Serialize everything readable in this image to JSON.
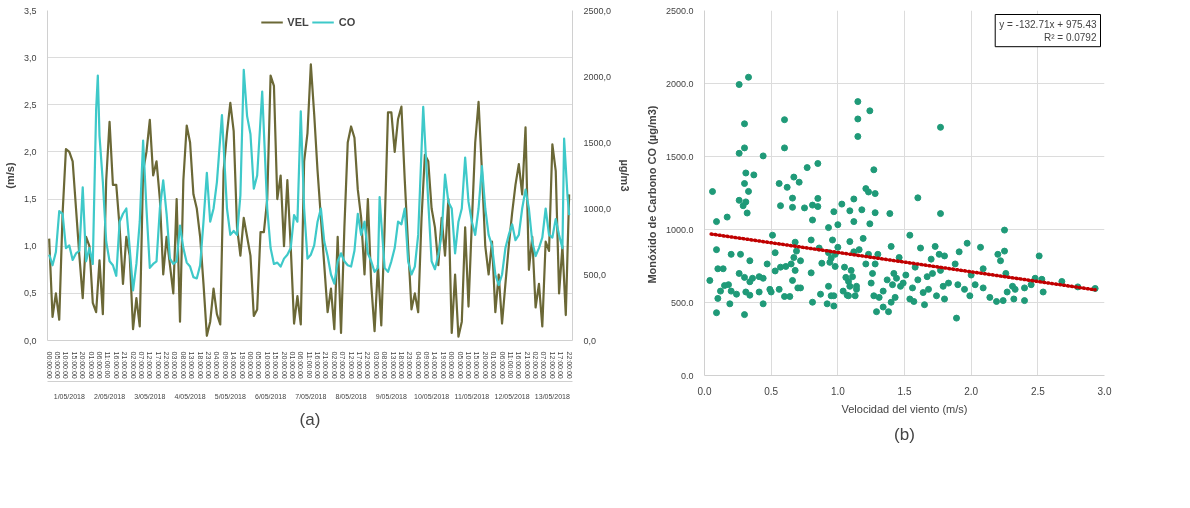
{
  "chart_data": [
    {
      "type": "line",
      "title": "(a)",
      "ylabel": "(m/s)",
      "y2label": "µg/m3",
      "legend": "top",
      "grid": "y",
      "xlim": [
        "2018-04-30T23:00",
        "2018-05-14T00:00"
      ],
      "xticks": [
        {
          "value": "2018-05-01T00:00",
          "label": "00:00:00"
        },
        {
          "value": "2018-05-01T05:00",
          "label": "05:00:00"
        },
        {
          "value": "2018-05-01T10:00",
          "label": "10:00:00"
        },
        {
          "value": "2018-05-01T15:00",
          "label": "15:00:00"
        },
        {
          "value": "2018-05-01T20:00",
          "label": "20:00:00"
        },
        {
          "value": "2018-05-02T01:00",
          "label": "01:00:00"
        },
        {
          "value": "2018-05-02T06:00",
          "label": "06:00:00"
        },
        {
          "value": "2018-05-02T11:00",
          "label": "11:00:00"
        },
        {
          "value": "2018-05-02T16:00",
          "label": "16:00:00"
        },
        {
          "value": "2018-05-02T21:00",
          "label": "21:00:00"
        },
        {
          "value": "2018-05-03T02:00",
          "label": "02:00:00"
        },
        {
          "value": "2018-05-03T07:00",
          "label": "07:00:00"
        },
        {
          "value": "2018-05-03T12:00",
          "label": "12:00:00"
        },
        {
          "value": "2018-05-03T17:00",
          "label": "17:00:00"
        },
        {
          "value": "2018-05-03T22:00",
          "label": "22:00:00"
        },
        {
          "value": "2018-05-04T03:00",
          "label": "03:00:00"
        },
        {
          "value": "2018-05-04T08:00",
          "label": "08:00:00"
        },
        {
          "value": "2018-05-04T13:00",
          "label": "13:00:00"
        },
        {
          "value": "2018-05-04T18:00",
          "label": "18:00:00"
        },
        {
          "value": "2018-05-04T23:00",
          "label": "23:00:00"
        },
        {
          "value": "2018-05-05T04:00",
          "label": "04:00:00"
        },
        {
          "value": "2018-05-05T09:00",
          "label": "09:00:00"
        },
        {
          "value": "2018-05-05T14:00",
          "label": "14:00:00"
        },
        {
          "value": "2018-05-05T19:00",
          "label": "19:00:00"
        },
        {
          "value": "2018-05-06T00:00",
          "label": "00:00:00"
        },
        {
          "value": "2018-05-06T05:00",
          "label": "05:00:00"
        },
        {
          "value": "2018-05-06T10:00",
          "label": "10:00:00"
        },
        {
          "value": "2018-05-06T15:00",
          "label": "15:00:00"
        },
        {
          "value": "2018-05-06T20:00",
          "label": "20:00:00"
        },
        {
          "value": "2018-05-07T01:00",
          "label": "01:00:00"
        },
        {
          "value": "2018-05-07T06:00",
          "label": "06:00:00"
        },
        {
          "value": "2018-05-07T11:00",
          "label": "11:00:00"
        },
        {
          "value": "2018-05-07T16:00",
          "label": "16:00:00"
        },
        {
          "value": "2018-05-07T21:00",
          "label": "21:00:00"
        },
        {
          "value": "2018-05-08T02:00",
          "label": "02:00:00"
        },
        {
          "value": "2018-05-08T07:00",
          "label": "07:00:00"
        },
        {
          "value": "2018-05-08T12:00",
          "label": "12:00:00"
        },
        {
          "value": "2018-05-08T17:00",
          "label": "17:00:00"
        },
        {
          "value": "2018-05-08T22:00",
          "label": "22:00:00"
        },
        {
          "value": "2018-05-09T03:00",
          "label": "03:00:00"
        },
        {
          "value": "2018-05-09T08:00",
          "label": "08:00:00"
        },
        {
          "value": "2018-05-09T13:00",
          "label": "13:00:00"
        },
        {
          "value": "2018-05-09T18:00",
          "label": "18:00:00"
        },
        {
          "value": "2018-05-09T23:00",
          "label": "23:00:00"
        },
        {
          "value": "2018-05-10T04:00",
          "label": "04:00:00"
        },
        {
          "value": "2018-05-10T09:00",
          "label": "09:00:00"
        },
        {
          "value": "2018-05-10T14:00",
          "label": "14:00:00"
        },
        {
          "value": "2018-05-10T19:00",
          "label": "19:00:00"
        },
        {
          "value": "2018-05-11T00:00",
          "label": "00:00:00"
        },
        {
          "value": "2018-05-11T05:00",
          "label": "05:00:00"
        },
        {
          "value": "2018-05-11T10:00",
          "label": "10:00:00"
        },
        {
          "value": "2018-05-11T15:00",
          "label": "15:00:00"
        },
        {
          "value": "2018-05-11T20:00",
          "label": "20:00:00"
        },
        {
          "value": "2018-05-12T01:00",
          "label": "01:00:00"
        },
        {
          "value": "2018-05-12T06:00",
          "label": "06:00:00"
        },
        {
          "value": "2018-05-12T11:00",
          "label": "11:00:00"
        },
        {
          "value": "2018-05-12T16:00",
          "label": "16:00:00"
        },
        {
          "value": "2018-05-12T21:00",
          "label": "21:00:00"
        },
        {
          "value": "2018-05-13T02:00",
          "label": "02:00:00"
        },
        {
          "value": "2018-05-13T07:00",
          "label": "07:00:00"
        },
        {
          "value": "2018-05-13T12:00",
          "label": "12:00:00"
        },
        {
          "value": "2018-05-13T17:00",
          "label": "17:00:00"
        },
        {
          "value": "2018-05-13T22:00",
          "label": "22:00:00"
        }
      ],
      "ylim": [
        0,
        3.5
      ],
      "yticks": [
        {
          "value": 0,
          "label": "0,0"
        },
        {
          "value": 0.5,
          "label": "0,5"
        },
        {
          "value": 1,
          "label": "1,0"
        },
        {
          "value": 1.5,
          "label": "1,5"
        },
        {
          "value": 2,
          "label": "2,0"
        },
        {
          "value": 2.5,
          "label": "2,5"
        },
        {
          "value": 3,
          "label": "3,0"
        },
        {
          "value": 3.5,
          "label": "3,5"
        }
      ],
      "y2lim": [
        0,
        2500
      ],
      "y2ticks": [
        {
          "value": 0,
          "label": "0,0"
        },
        {
          "value": 500,
          "label": "500,0"
        },
        {
          "value": 1000,
          "label": "1000,0"
        },
        {
          "value": 1500,
          "label": "1500,0"
        },
        {
          "value": 2000,
          "label": "2000,0"
        },
        {
          "value": 2500,
          "label": "2500,0"
        }
      ],
      "annotations": [
        "1/05/2018",
        "2/05/2018",
        "3/05/2018",
        "4/05/2018",
        "5/05/2018",
        "6/05/2018",
        "7/05/2018",
        "8/05/2018",
        "9/05/2018",
        "10/05/2018",
        "11/05/2018",
        "12/05/2018",
        "13/05/2018"
      ],
      "series": [
        {
          "name": "VEL",
          "color": "#6b6836",
          "x": [
            "2018-05-01T00:00",
            "2018-05-01T02:00",
            "2018-05-01T04:00",
            "2018-05-01T06:00",
            "2018-05-01T08:00",
            "2018-05-01T10:00",
            "2018-05-01T12:00",
            "2018-05-01T14:00",
            "2018-05-01T16:00",
            "2018-05-01T18:00",
            "2018-05-01T20:00",
            "2018-05-01T22:00",
            "2018-05-02T00:00",
            "2018-05-02T02:00",
            "2018-05-02T04:00",
            "2018-05-02T06:00",
            "2018-05-02T08:00",
            "2018-05-02T10:00",
            "2018-05-02T12:00",
            "2018-05-02T14:00",
            "2018-05-02T16:00",
            "2018-05-02T18:00",
            "2018-05-02T20:00",
            "2018-05-02T22:00",
            "2018-05-03T00:00",
            "2018-05-03T02:00",
            "2018-05-03T04:00",
            "2018-05-03T06:00",
            "2018-05-03T08:00",
            "2018-05-03T10:00",
            "2018-05-03T12:00",
            "2018-05-03T14:00",
            "2018-05-03T16:00",
            "2018-05-03T18:00",
            "2018-05-03T20:00",
            "2018-05-03T22:00",
            "2018-05-04T00:00",
            "2018-05-04T02:00",
            "2018-05-04T04:00",
            "2018-05-04T06:00",
            "2018-05-04T08:00",
            "2018-05-04T10:00",
            "2018-05-04T12:00",
            "2018-05-04T14:00",
            "2018-05-04T16:00",
            "2018-05-04T18:00",
            "2018-05-04T20:00",
            "2018-05-04T22:00",
            "2018-05-05T00:00",
            "2018-05-05T02:00",
            "2018-05-05T04:00",
            "2018-05-05T06:00",
            "2018-05-05T08:00",
            "2018-05-05T10:00",
            "2018-05-05T12:00",
            "2018-05-05T14:00",
            "2018-05-05T16:00",
            "2018-05-05T18:00",
            "2018-05-05T20:00",
            "2018-05-05T22:00",
            "2018-05-06T00:00",
            "2018-05-06T02:00",
            "2018-05-06T04:00",
            "2018-05-06T06:00",
            "2018-05-06T08:00",
            "2018-05-06T10:00",
            "2018-05-06T12:00",
            "2018-05-06T14:00",
            "2018-05-06T16:00",
            "2018-05-06T18:00",
            "2018-05-06T20:00",
            "2018-05-06T22:00",
            "2018-05-07T00:00",
            "2018-05-07T02:00",
            "2018-05-07T04:00",
            "2018-05-07T06:00",
            "2018-05-07T08:00",
            "2018-05-07T10:00",
            "2018-05-07T12:00",
            "2018-05-07T14:00",
            "2018-05-07T16:00",
            "2018-05-07T18:00",
            "2018-05-07T20:00",
            "2018-05-07T22:00",
            "2018-05-08T00:00",
            "2018-05-08T02:00",
            "2018-05-08T04:00",
            "2018-05-08T06:00",
            "2018-05-08T08:00",
            "2018-05-08T10:00",
            "2018-05-08T12:00",
            "2018-05-08T14:00",
            "2018-05-08T16:00",
            "2018-05-08T18:00",
            "2018-05-08T20:00",
            "2018-05-08T22:00",
            "2018-05-09T00:00",
            "2018-05-09T02:00",
            "2018-05-09T04:00",
            "2018-05-09T06:00",
            "2018-05-09T08:00",
            "2018-05-09T10:00",
            "2018-05-09T12:00",
            "2018-05-09T14:00",
            "2018-05-09T16:00",
            "2018-05-09T18:00",
            "2018-05-09T20:00",
            "2018-05-09T22:00",
            "2018-05-10T00:00",
            "2018-05-10T02:00",
            "2018-05-10T04:00",
            "2018-05-10T06:00",
            "2018-05-10T08:00",
            "2018-05-10T10:00",
            "2018-05-10T12:00",
            "2018-05-10T14:00",
            "2018-05-10T16:00",
            "2018-05-10T18:00",
            "2018-05-10T20:00",
            "2018-05-10T22:00",
            "2018-05-11T00:00",
            "2018-05-11T02:00",
            "2018-05-11T04:00",
            "2018-05-11T06:00",
            "2018-05-11T08:00",
            "2018-05-11T10:00",
            "2018-05-11T12:00",
            "2018-05-11T14:00",
            "2018-05-11T16:00",
            "2018-05-11T18:00",
            "2018-05-11T20:00",
            "2018-05-11T22:00",
            "2018-05-12T00:00",
            "2018-05-12T02:00",
            "2018-05-12T04:00",
            "2018-05-12T06:00",
            "2018-05-12T08:00",
            "2018-05-12T10:00",
            "2018-05-12T12:00",
            "2018-05-12T14:00",
            "2018-05-12T16:00",
            "2018-05-12T18:00",
            "2018-05-12T20:00",
            "2018-05-12T22:00",
            "2018-05-13T00:00",
            "2018-05-13T02:00",
            "2018-05-13T04:00",
            "2018-05-13T06:00",
            "2018-05-13T08:00",
            "2018-05-13T10:00",
            "2018-05-13T12:00",
            "2018-05-13T14:00",
            "2018-05-13T16:00",
            "2018-05-13T18:00",
            "2018-05-13T20:00",
            "2018-05-13T22:00"
          ],
          "values": [
            1.08,
            0.25,
            0.5,
            0.22,
            1.35,
            2.03,
            2.0,
            1.9,
            1.4,
            0.9,
            0.45,
            1.1,
            1.0,
            0.4,
            0.3,
            0.85,
            0.28,
            1.7,
            2.32,
            1.65,
            1.65,
            1.2,
            0.6,
            1.1,
            0.9,
            0.12,
            0.45,
            0.15,
            1.8,
            2.0,
            2.34,
            1.75,
            1.9,
            1.5,
            0.7,
            1.1,
            0.8,
            0.5,
            1.5,
            0.2,
            1.7,
            2.28,
            2.1,
            1.55,
            1.4,
            1.1,
            0.6,
            0.05,
            0.2,
            0.55,
            0.28,
            0.17,
            1.8,
            2.2,
            2.52,
            2.22,
            1.2,
            0.9,
            1.3,
            1.1,
            0.9,
            0.26,
            0.33,
            1.15,
            1.15,
            1.5,
            2.81,
            2.7,
            1.5,
            1.75,
            1.0,
            1.7,
            1.0,
            0.18,
            0.47,
            0.17,
            1.9,
            2.2,
            2.93,
            2.4,
            1.8,
            1.3,
            0.8,
            0.3,
            0.55,
            0.12,
            1.1,
            0.08,
            1.2,
            2.1,
            2.27,
            2.15,
            1.6,
            1.3,
            0.7,
            1.5,
            0.6,
            0.1,
            0.8,
            0.16,
            1.2,
            2.42,
            2.42,
            2.0,
            2.35,
            2.48,
            1.7,
            1.0,
            0.33,
            0.5,
            0.3,
            1.3,
            1.97,
            1.9,
            1.4,
            1.2,
            0.8,
            1.3,
            0.9,
            1.5,
            0.08,
            0.7,
            0.04,
            0.2,
            1.2,
            0.36,
            1.25,
            2.1,
            2.53,
            1.8,
            1.0,
            0.7,
            1.05,
            0.3,
            0.7,
            0.18,
            0.6,
            1.0,
            1.35,
            1.65,
            1.87,
            1.55,
            2.26,
            0.75,
            1.1,
            0.35,
            0.6,
            0.15,
            1.05,
            0.95,
            2.08,
            1.8,
            0.5,
            1.0,
            0.27,
            1.55
          ]
        },
        {
          "name": "CO",
          "color": "#3ec9c9",
          "axis": "y2",
          "x": [
            "2018-05-01T00:00",
            "2018-05-01T02:00",
            "2018-05-01T04:00",
            "2018-05-01T06:00",
            "2018-05-01T08:00",
            "2018-05-01T10:00",
            "2018-05-01T12:00",
            "2018-05-01T14:00",
            "2018-05-01T16:00",
            "2018-05-01T18:00",
            "2018-05-01T20:00",
            "2018-05-01T22:00",
            "2018-05-02T00:00",
            "2018-05-02T02:00",
            "2018-05-02T04:00",
            "2018-05-02T05:00",
            "2018-05-02T06:00",
            "2018-05-02T08:00",
            "2018-05-02T10:00",
            "2018-05-02T12:00",
            "2018-05-02T14:00",
            "2018-05-02T16:00",
            "2018-05-02T18:00",
            "2018-05-02T20:00",
            "2018-05-02T22:00",
            "2018-05-03T00:00",
            "2018-05-03T02:00",
            "2018-05-03T04:00",
            "2018-05-03T06:00",
            "2018-05-03T08:00",
            "2018-05-03T10:00",
            "2018-05-03T12:00",
            "2018-05-03T14:00",
            "2018-05-03T16:00",
            "2018-05-03T18:00",
            "2018-05-03T20:00",
            "2018-05-03T22:00",
            "2018-05-04T00:00",
            "2018-05-04T02:00",
            "2018-05-04T04:00",
            "2018-05-04T06:00",
            "2018-05-04T08:00",
            "2018-05-04T10:00",
            "2018-05-04T12:00",
            "2018-05-04T14:00",
            "2018-05-04T16:00",
            "2018-05-04T18:00",
            "2018-05-04T20:00",
            "2018-05-04T22:00",
            "2018-05-05T00:00",
            "2018-05-05T02:00",
            "2018-05-05T04:00",
            "2018-05-05T07:00",
            "2018-05-05T10:00",
            "2018-05-05T12:00",
            "2018-05-05T14:00",
            "2018-05-05T16:00",
            "2018-05-05T18:00",
            "2018-05-05T20:00",
            "2018-05-05T22:00",
            "2018-05-06T00:00",
            "2018-05-06T02:00",
            "2018-05-06T04:00",
            "2018-05-06T07:00",
            "2018-05-06T10:00",
            "2018-05-06T12:00",
            "2018-05-06T14:00",
            "2018-05-06T16:00",
            "2018-05-06T18:00",
            "2018-05-06T20:00",
            "2018-05-06T22:00",
            "2018-05-07T00:00",
            "2018-05-07T02:00",
            "2018-05-07T04:00",
            "2018-05-07T06:00",
            "2018-05-07T08:00",
            "2018-05-07T10:00",
            "2018-05-07T12:00",
            "2018-05-07T14:00",
            "2018-05-07T16:00",
            "2018-05-07T18:00",
            "2018-05-07T20:00",
            "2018-05-07T22:00",
            "2018-05-08T00:00",
            "2018-05-08T02:00",
            "2018-05-08T04:00",
            "2018-05-08T06:00",
            "2018-05-08T08:00",
            "2018-05-08T10:00",
            "2018-05-08T12:00",
            "2018-05-08T14:00",
            "2018-05-08T16:00",
            "2018-05-08T18:00",
            "2018-05-08T20:00",
            "2018-05-08T22:00",
            "2018-05-09T00:00",
            "2018-05-09T02:00",
            "2018-05-09T04:00",
            "2018-05-09T05:00",
            "2018-05-09T06:00",
            "2018-05-09T08:00",
            "2018-05-09T10:00",
            "2018-05-09T12:00",
            "2018-05-09T14:00",
            "2018-05-09T16:00",
            "2018-05-09T18:00",
            "2018-05-09T20:00",
            "2018-05-09T22:00",
            "2018-05-10T00:00",
            "2018-05-10T02:00",
            "2018-05-10T04:00",
            "2018-05-10T07:00",
            "2018-05-10T10:00",
            "2018-05-10T12:00",
            "2018-05-10T14:00",
            "2018-05-10T16:00",
            "2018-05-10T18:00",
            "2018-05-10T20:00",
            "2018-05-10T22:00",
            "2018-05-11T00:00",
            "2018-05-11T02:00",
            "2018-05-11T04:00",
            "2018-05-11T06:00",
            "2018-05-11T08:00",
            "2018-05-11T10:00",
            "2018-05-11T12:00",
            "2018-05-11T14:00",
            "2018-05-11T16:00",
            "2018-05-11T18:00",
            "2018-05-11T20:00",
            "2018-05-11T22:00",
            "2018-05-12T00:00",
            "2018-05-12T02:00",
            "2018-05-12T04:00",
            "2018-05-12T06:00",
            "2018-05-12T08:00",
            "2018-05-12T10:00",
            "2018-05-12T12:00",
            "2018-05-12T14:00",
            "2018-05-12T16:00",
            "2018-05-12T18:00",
            "2018-05-12T20:00",
            "2018-05-12T22:00",
            "2018-05-13T00:00",
            "2018-05-13T02:00",
            "2018-05-13T04:00",
            "2018-05-13T06:00",
            "2018-05-13T08:00",
            "2018-05-13T10:00",
            "2018-05-13T12:00",
            "2018-05-13T14:00",
            "2018-05-13T16:00",
            "2018-05-13T18:00",
            "2018-05-13T19:00",
            "2018-05-13T21:00",
            "2018-05-13T22:00"
          ],
          "values": [
            650,
            570,
            670,
            980,
            960,
            700,
            720,
            610,
            660,
            680,
            1160,
            600,
            700,
            580,
            1750,
            2007,
            1550,
            1200,
            750,
            600,
            570,
            490,
            900,
            960,
            1000,
            700,
            380,
            580,
            900,
            1514,
            1000,
            550,
            580,
            600,
            1000,
            1214,
            960,
            620,
            580,
            600,
            870,
            700,
            590,
            560,
            480,
            470,
            570,
            900,
            1271,
            900,
            1000,
            1200,
            1707,
            1000,
            800,
            830,
            800,
            1100,
            2050,
            1700,
            1564,
            1150,
            1250,
            1886,
            1000,
            700,
            580,
            590,
            560,
            620,
            650,
            700,
            950,
            900,
            1736,
            1000,
            620,
            650,
            720,
            900,
            1000,
            750,
            640,
            500,
            430,
            600,
            660,
            600,
            570,
            560,
            680,
            960,
            800,
            900,
            660,
            600,
            520,
            550,
            1086,
            900,
            550,
            520,
            600,
            700,
            900,
            880,
            1000,
            600,
            500,
            560,
            800,
            1771,
            1050,
            600,
            540,
            650,
            800,
            1257,
            1050,
            1000,
            660,
            900,
            1000,
            1386,
            1050,
            900,
            800,
            1000,
            1321,
            1000,
            800,
            720,
            500,
            420,
            500,
            700,
            800,
            880,
            760,
            800,
            1000,
            1143,
            1000,
            750,
            640,
            700,
            780,
            1000,
            800,
            780,
            920,
            800,
            700,
            1529,
            1100,
            950
          ]
        }
      ]
    },
    {
      "type": "scatter",
      "xlabel": "Velocidad del viento (m/s)",
      "ylabel": "Monóxido  de Carbono CO (µg/m3)",
      "title": "(b)",
      "grid": true,
      "xlim": [
        0,
        3
      ],
      "ylim": [
        0,
        2500
      ],
      "xticks": [
        {
          "value": 0,
          "label": "0.0"
        },
        {
          "value": 0.5,
          "label": "0.5"
        },
        {
          "value": 1,
          "label": "1.0"
        },
        {
          "value": 1.5,
          "label": "1.5"
        },
        {
          "value": 2,
          "label": "2.0"
        },
        {
          "value": 2.5,
          "label": "2.5"
        },
        {
          "value": 3,
          "label": "3.0"
        }
      ],
      "yticks": [
        {
          "value": 0,
          "label": "0.0"
        },
        {
          "value": 500,
          "label": "500.0"
        },
        {
          "value": 1000,
          "label": "1000.0"
        },
        {
          "value": 1500,
          "label": "1500.0"
        },
        {
          "value": 2000,
          "label": "2000.0"
        },
        {
          "value": 2500,
          "label": "2500.0"
        }
      ],
      "annotations": [
        "y = -132.71x + 975.43",
        "R² = 0.0792"
      ],
      "series": [
        {
          "color": "#1f9a78",
          "marker": "circle",
          "x": [
            0.06,
            0.09,
            0.17,
            0.26,
            0.33,
            0.3,
            0.3,
            0.26,
            0.31,
            0.37,
            0.3,
            0.33,
            0.26,
            0.31,
            0.29,
            0.32,
            0.44,
            0.6,
            0.6,
            0.56,
            0.62,
            0.67,
            0.71,
            0.66,
            0.66,
            0.57,
            0.75,
            0.77,
            0.85,
            0.85,
            0.85,
            0.81,
            0.81,
            0.97,
            1.03,
            1.09,
            1.12,
            1.18,
            1.15,
            1.15,
            1.15,
            1.24,
            1.27,
            1.21,
            1.23,
            1.28,
            1.28,
            1.39,
            1.12,
            1.24,
            0.93,
            1.0,
            1.6,
            1.77,
            1.77,
            2.25,
            0.04,
            0.09,
            0.09,
            0.1,
            0.1,
            0.14,
            0.12,
            0.15,
            0.18,
            0.19,
            0.2,
            0.2,
            0.26,
            0.24,
            0.27,
            0.3,
            0.3,
            0.31,
            0.34,
            0.34,
            0.36,
            0.34,
            0.41,
            0.41,
            0.44,
            0.44,
            0.47,
            0.49,
            0.5,
            0.53,
            0.56,
            0.53,
            0.51,
            0.57,
            0.6,
            0.61,
            0.64,
            0.65,
            0.66,
            0.67,
            0.68,
            0.7,
            0.72,
            0.72,
            0.68,
            0.69,
            0.8,
            0.81,
            0.8,
            0.86,
            0.87,
            0.88,
            0.92,
            0.93,
            0.93,
            0.94,
            0.95,
            0.97,
            0.98,
            0.97,
            0.98,
            0.95,
            0.96,
            1.0,
            1.04,
            1.05,
            1.06,
            1.07,
            1.08,
            1.08,
            1.09,
            1.1,
            1.11,
            1.12,
            1.13,
            1.14,
            1.14,
            1.09,
            1.16,
            1.19,
            1.21,
            1.23,
            1.25,
            1.26,
            1.27,
            1.28,
            1.29,
            1.3,
            1.31,
            1.34,
            1.34,
            1.37,
            1.38,
            1.4,
            1.4,
            1.41,
            1.42,
            1.43,
            1.44,
            1.46,
            1.47,
            1.49,
            1.51,
            1.54,
            1.54,
            1.56,
            1.57,
            1.58,
            1.6,
            1.62,
            1.64,
            1.65,
            1.67,
            1.68,
            1.7,
            1.71,
            1.73,
            1.74,
            1.76,
            1.77,
            1.79,
            1.8,
            1.8,
            1.83,
            1.88,
            1.89,
            1.9,
            1.91,
            1.95,
            1.97,
            1.99,
            2.0,
            2.03,
            2.07,
            2.09,
            2.09,
            2.14,
            2.19,
            2.2,
            2.22,
            2.24,
            2.25,
            2.26,
            2.27,
            2.31,
            2.32,
            2.33,
            2.4,
            2.4,
            2.45,
            2.48,
            2.51,
            2.53,
            2.54,
            2.68,
            2.8,
            2.93
          ],
          "values": [
            1260,
            1054,
            1085,
            1993,
            2043,
            1724,
            1559,
            1522,
            1387,
            1374,
            1315,
            1261,
            1200,
            1189,
            1163,
            1113,
            1504,
            1752,
            1559,
            1315,
            1289,
            1359,
            1324,
            1215,
            1152,
            1163,
            1148,
            1424,
            1452,
            1213,
            1157,
            1167,
            1065,
            1122,
            1174,
            1128,
            1209,
            1135,
            1876,
            1757,
            1637,
            1813,
            1409,
            1280,
            1257,
            1246,
            1115,
            1109,
            1054,
            1039,
            1013,
            1033,
            1217,
            1700,
            1109,
            996,
            651,
            862,
            430,
            528,
            731,
            731,
            578,
            616,
            622,
            491,
            830,
            578,
            699,
            557,
            830,
            417,
            672,
            572,
            786,
            642,
            666,
            550,
            677,
            572,
            666,
            491,
            764,
            590,
            572,
            716,
            590,
            841,
            961,
            742,
            541,
            747,
            541,
            764,
            651,
            808,
            720,
            600,
            786,
            600,
            913,
            852,
            703,
            502,
            928,
            873,
            557,
            769,
            491,
            841,
            611,
            775,
            546,
            476,
            747,
            546,
            830,
            803,
            928,
            878,
            578,
            742,
            672,
            550,
            644,
            546,
            611,
            720,
            677,
            847,
            546,
            590,
            611,
            917,
            862,
            939,
            764,
            830,
            633,
            699,
            546,
            764,
            437,
            830,
            535,
            578,
            469,
            655,
            437,
            502,
            884,
            622,
            699,
            535,
            666,
            808,
            611,
            633,
            688,
            524,
            961,
            600,
            507,
            742,
            655,
            873,
            568,
            485,
            677,
            590,
            797,
            699,
            884,
            546,
            830,
            720,
            611,
            819,
            524,
            633,
            764,
            393,
            622,
            847,
            590,
            906,
            546,
            688,
            622,
            878,
            731,
            600,
            535,
            507,
            830,
            786,
            513,
            852,
            699,
            572,
            611,
            524,
            590,
            600,
            513,
            622,
            666,
            819,
            659,
            572,
            644,
            607,
            596
          ]
        },
        {
          "type": "line",
          "color": "#c00000",
          "line_style": "dotted",
          "x": [
            0.05,
            2.93
          ],
          "values": [
            969,
            587
          ]
        }
      ]
    }
  ]
}
